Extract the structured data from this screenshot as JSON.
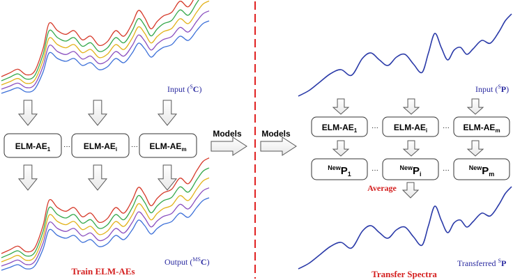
{
  "left": {
    "input_label_prefix": "Input (",
    "input_label_sup": "S",
    "input_label_main": "C",
    "input_label_suffix": ")",
    "output_label_prefix": "Output (",
    "output_label_sup": "MS",
    "output_label_main": "C",
    "output_label_suffix": ")",
    "boxes": [
      {
        "main": "ELM-AE",
        "sub": "1"
      },
      {
        "main": "ELM-AE",
        "sub": "i"
      },
      {
        "main": "ELM-AE",
        "sub": "m"
      }
    ],
    "ellipsis": "···",
    "footer": "Train ELM-AEs",
    "models_label": "Models"
  },
  "right": {
    "models_label": "Models",
    "input_label_prefix": "Input (",
    "input_label_sup": "S",
    "input_label_main": "P",
    "input_label_suffix": ")",
    "boxes": [
      {
        "main": "ELM-AE",
        "sub": "1"
      },
      {
        "main": "ELM-AE",
        "sub": "i"
      },
      {
        "main": "ELM-AE",
        "sub": "m"
      }
    ],
    "new_boxes": [
      {
        "sup": "New",
        "main": "P",
        "sub": "1"
      },
      {
        "sup": "New",
        "main": "P",
        "sub": "i"
      },
      {
        "sup": "New",
        "main": "P",
        "sub": "m"
      }
    ],
    "ellipsis": "···",
    "average_label": "Average",
    "transferred_prefix": "Transferred ",
    "transferred_sup": "S",
    "transferred_main": "P",
    "footer": "Transfer Spectra"
  },
  "colors": {
    "divider": "#e02020",
    "footer": "#d42020",
    "label_blue": "#2a2aa0",
    "curve_blue": "#2a3aa8",
    "spectra": [
      "#3b6fd8",
      "#8a4fbf",
      "#e2b21a",
      "#35a84b",
      "#d63a2a"
    ]
  }
}
